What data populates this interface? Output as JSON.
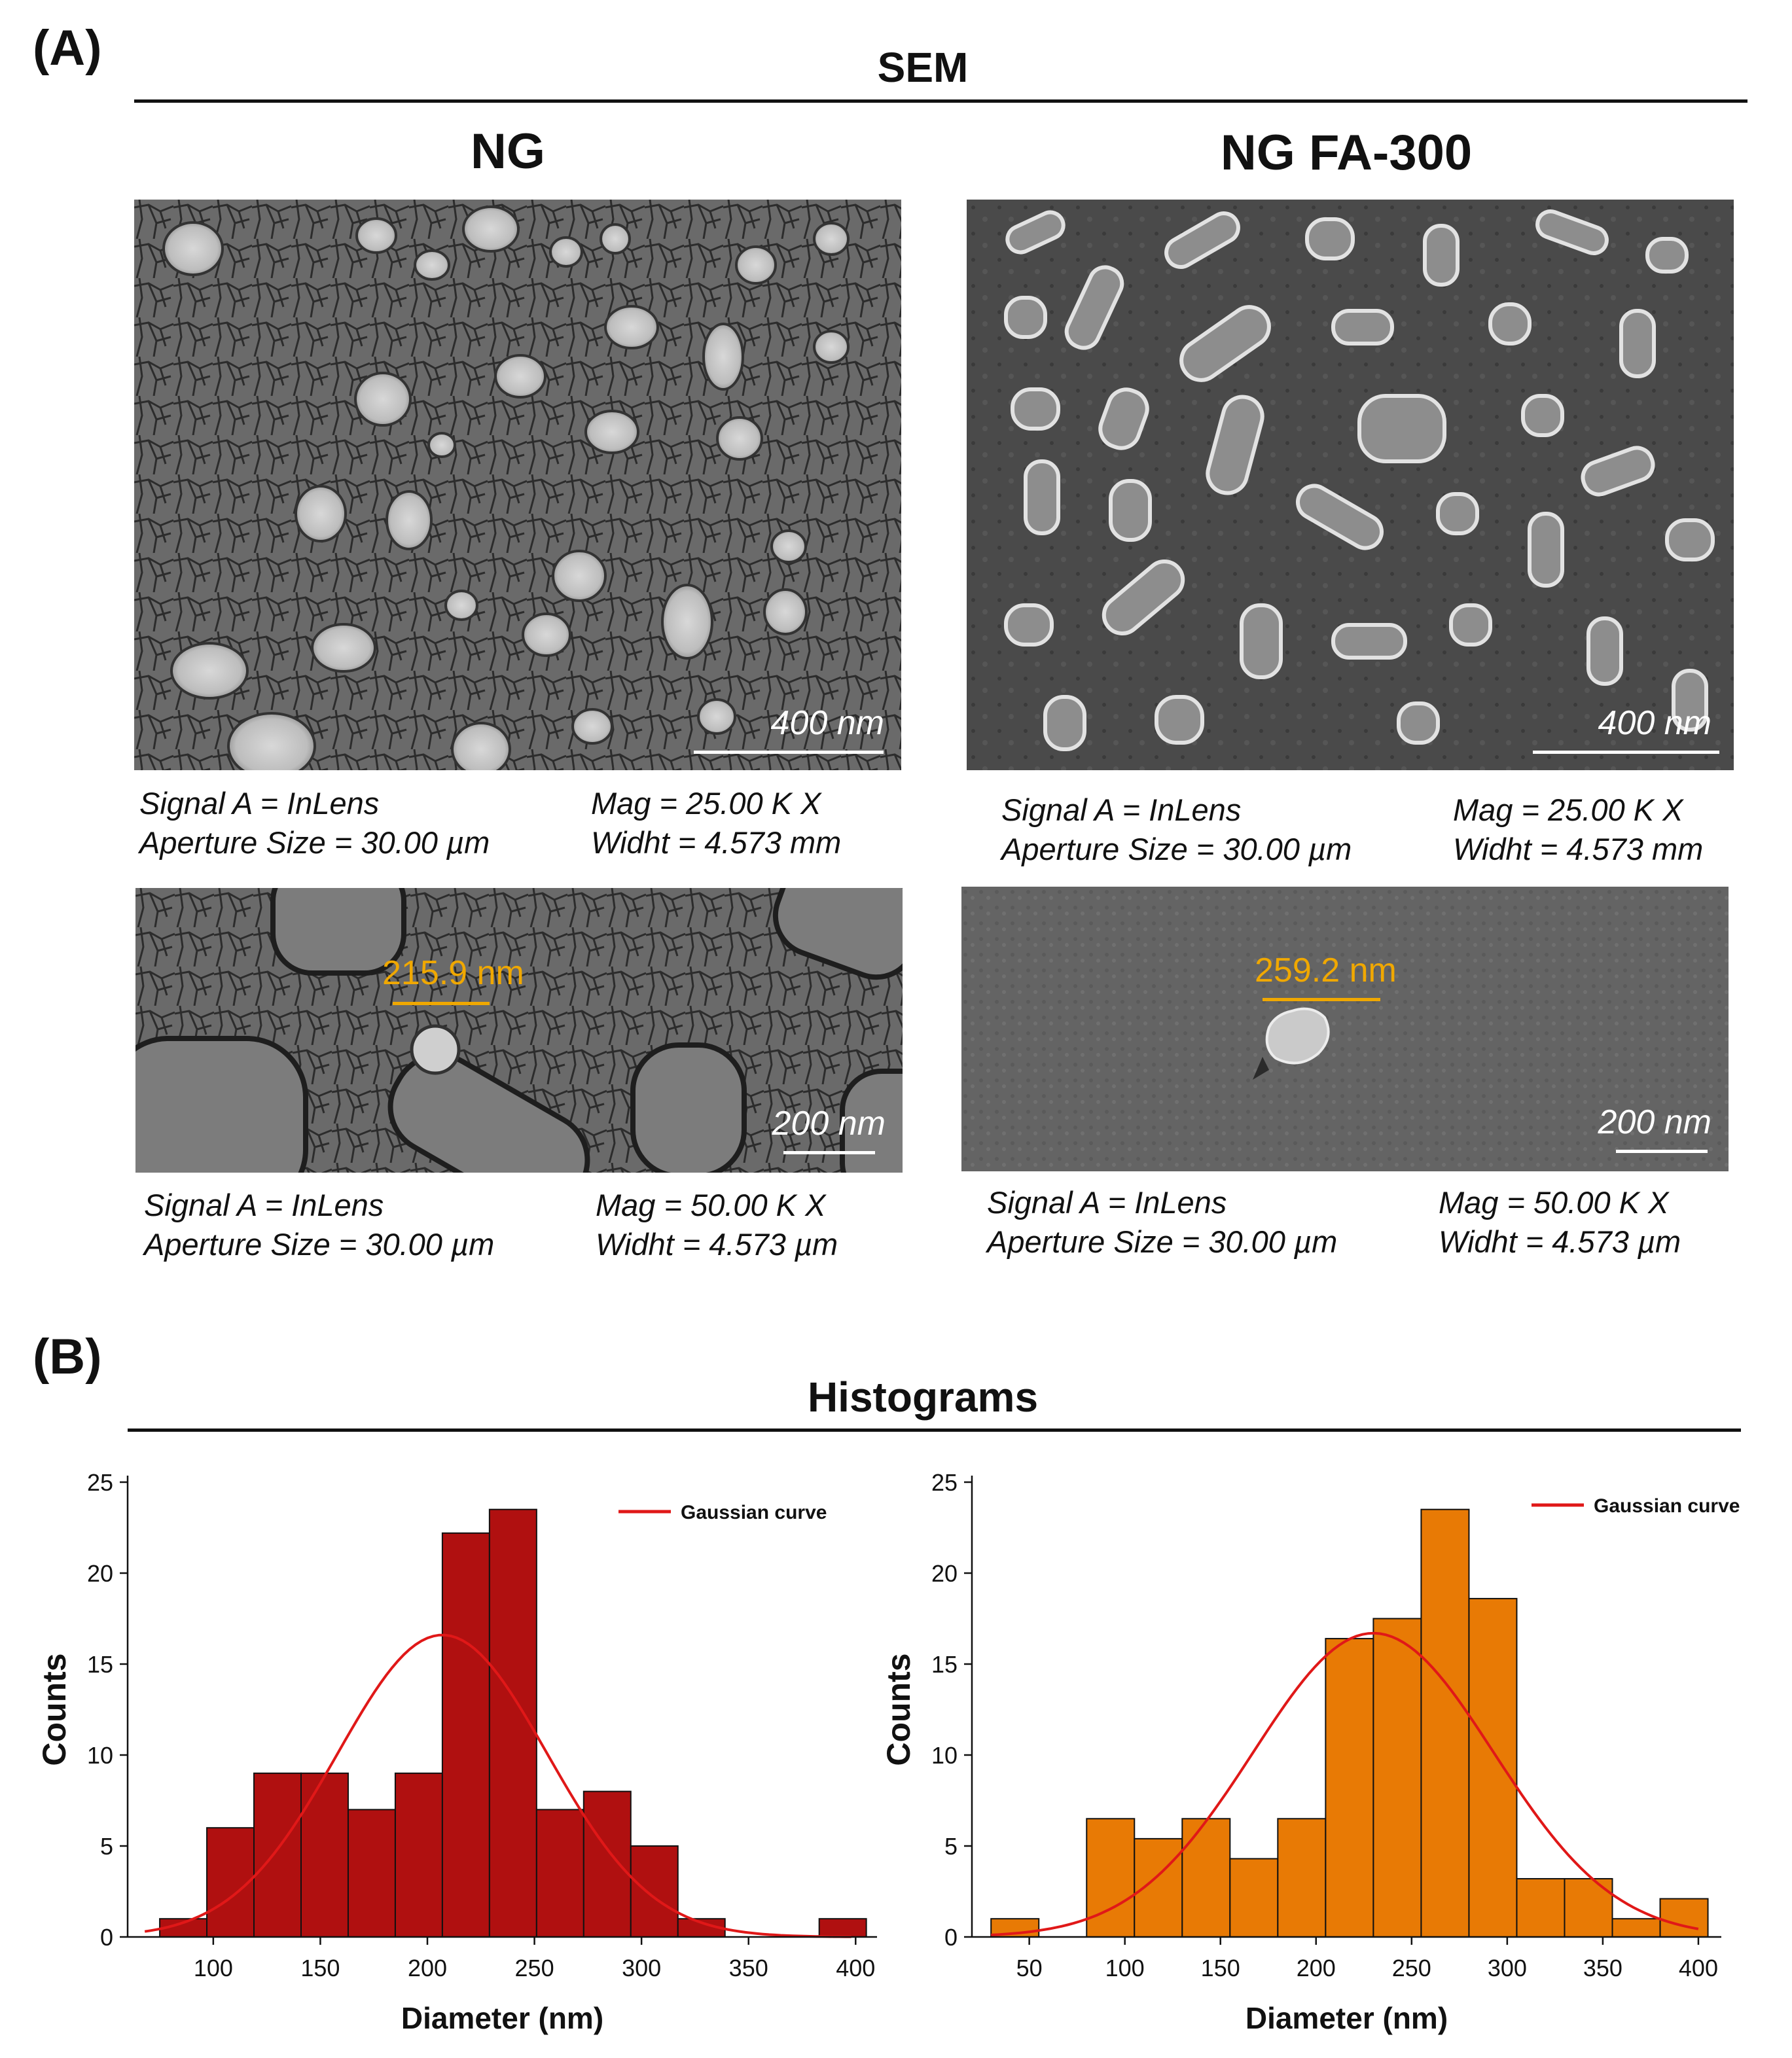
{
  "panel_a": {
    "letter": "(A)",
    "title": "SEM",
    "left": {
      "title": "NG",
      "top": {
        "scale": "400 nm",
        "meta": [
          [
            "Signal A = InLens",
            "Mag = 25.00 K X"
          ],
          [
            "Aperture Size = 30.00 µm",
            "Widht = 4.573 mm"
          ]
        ]
      },
      "bottom": {
        "scale": "200 nm",
        "measure": "215.9 nm",
        "meta": [
          [
            "Signal A = InLens",
            "Mag = 50.00 K X"
          ],
          [
            "Aperture Size = 30.00 µm",
            "Widht = 4.573 µm"
          ]
        ]
      }
    },
    "right": {
      "title": "NG FA-300",
      "top": {
        "scale": "400 nm",
        "meta": [
          [
            "Signal A = InLens",
            "Mag = 25.00 K X"
          ],
          [
            "Aperture Size = 30.00 µm",
            "Widht = 4.573 mm"
          ]
        ]
      },
      "bottom": {
        "scale": "200 nm",
        "measure": "259.2 nm",
        "meta": [
          [
            "Signal A = InLens",
            "Mag = 50.00 K X"
          ],
          [
            "Aperture Size = 30.00 µm",
            "Widht = 4.573 µm"
          ]
        ]
      }
    }
  },
  "panel_b": {
    "letter": "(B)",
    "title": "Histograms"
  },
  "chart_data": [
    {
      "type": "bar",
      "subtype": "histogram",
      "bar_color": "#b01010",
      "curve_color": "#e01818",
      "legend": "Gaussian curve",
      "legend_position": "top-right",
      "xlabel": "Diameter (nm)",
      "ylabel": "Counts",
      "xlim": [
        60,
        410
      ],
      "ylim": [
        0,
        25
      ],
      "xticks": [
        100,
        150,
        200,
        250,
        300,
        350,
        400
      ],
      "yticks": [
        0,
        5,
        10,
        15,
        20,
        25
      ],
      "bin_width": 22,
      "bins": [
        {
          "x0": 75,
          "count": 1
        },
        {
          "x0": 97,
          "count": 6
        },
        {
          "x0": 119,
          "count": 9
        },
        {
          "x0": 141,
          "count": 9
        },
        {
          "x0": 163,
          "count": 7
        },
        {
          "x0": 185,
          "count": 9
        },
        {
          "x0": 207,
          "count": 22.2
        },
        {
          "x0": 229,
          "count": 23.5
        },
        {
          "x0": 251,
          "count": 7
        },
        {
          "x0": 273,
          "count": 8
        },
        {
          "x0": 295,
          "count": 5
        },
        {
          "x0": 317,
          "count": 1
        },
        {
          "x0": 383,
          "count": 1
        }
      ],
      "gaussian": {
        "mean": 207,
        "peak": 16.6,
        "sigma": 49,
        "x_range": [
          68,
          398
        ]
      }
    },
    {
      "type": "bar",
      "subtype": "histogram",
      "bar_color": "#e87a05",
      "curve_color": "#e01818",
      "legend": "Gaussian curve",
      "legend_position": "top-right",
      "xlabel": "Diameter (nm)",
      "ylabel": "Counts",
      "xlim": [
        20,
        412
      ],
      "ylim": [
        0,
        25
      ],
      "xticks": [
        50,
        100,
        150,
        200,
        250,
        300,
        350,
        400
      ],
      "yticks": [
        0,
        5,
        10,
        15,
        20,
        25
      ],
      "bin_width": 25,
      "bins": [
        {
          "x0": 30,
          "count": 1
        },
        {
          "x0": 80,
          "count": 6.5
        },
        {
          "x0": 105,
          "count": 5.4
        },
        {
          "x0": 130,
          "count": 6.5
        },
        {
          "x0": 155,
          "count": 4.3
        },
        {
          "x0": 180,
          "count": 6.5
        },
        {
          "x0": 205,
          "count": 16.4
        },
        {
          "x0": 230,
          "count": 17.5
        },
        {
          "x0": 255,
          "count": 23.5
        },
        {
          "x0": 280,
          "count": 18.6
        },
        {
          "x0": 305,
          "count": 3.2
        },
        {
          "x0": 330,
          "count": 3.2
        },
        {
          "x0": 355,
          "count": 1
        },
        {
          "x0": 380,
          "count": 2.1
        }
      ],
      "gaussian": {
        "mean": 230,
        "peak": 16.7,
        "sigma": 63,
        "x_range": [
          30,
          400
        ]
      }
    }
  ]
}
